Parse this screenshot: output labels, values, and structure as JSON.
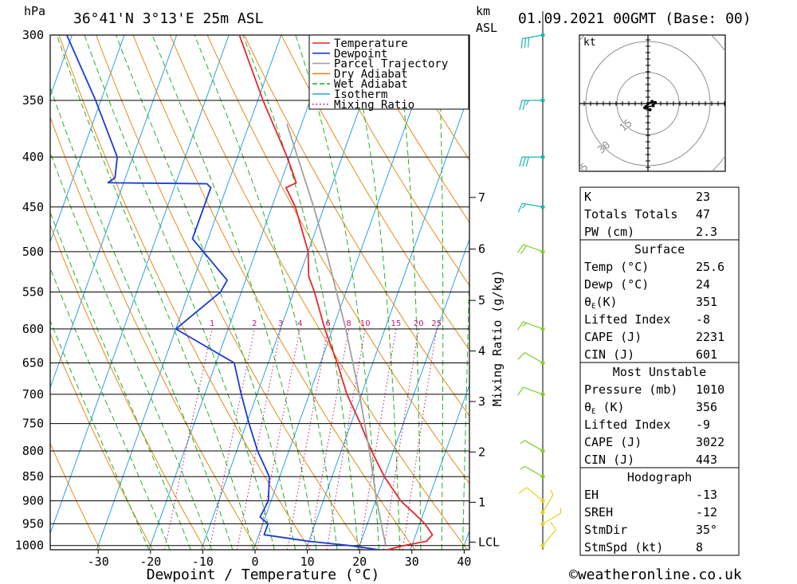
{
  "header": {
    "hpa_label": "hPa",
    "location": "36°41'N  3°13'E  25m  ASL",
    "km_label": "km",
    "asl_label": "ASL",
    "datetime": "01.09.2021  00GMT  (Base: 00)"
  },
  "footer": {
    "copyright": "©weatheronline.co.uk"
  },
  "chart_data": {
    "type": "line",
    "subtype": "skew-T log-P diagram",
    "xlabel": "Dewpoint / Temperature (°C)",
    "ylabel": "hPa",
    "secondary_axis_label": "Mixing Ratio (g/kg)",
    "xlim": [
      -40,
      40
    ],
    "ylim": [
      1010,
      300
    ],
    "pressure_ticks": [
      300,
      350,
      400,
      450,
      500,
      550,
      600,
      650,
      700,
      750,
      800,
      850,
      900,
      950,
      1000
    ],
    "temperature_ticks": [
      -30,
      -20,
      -10,
      0,
      10,
      20,
      30,
      40
    ],
    "km_ticks": [
      {
        "label": "7",
        "p": 440
      },
      {
        "label": "6",
        "p": 497
      },
      {
        "label": "5",
        "p": 561
      },
      {
        "label": "4",
        "p": 632
      },
      {
        "label": "3",
        "p": 712
      },
      {
        "label": "2",
        "p": 802
      },
      {
        "label": "1",
        "p": 903
      },
      {
        "label": "LCL",
        "p": 992
      }
    ],
    "mixing_ratio_labels": [
      "1",
      "2",
      "3",
      "4",
      "6",
      "8",
      "10",
      "15",
      "20",
      "25"
    ],
    "mixing_ratio_values": [
      1,
      2,
      3,
      4,
      6,
      8,
      10,
      15,
      20,
      25
    ],
    "legend": {
      "placement": "top-right",
      "entries": [
        {
          "label": "Temperature",
          "color": "#e8262e"
        },
        {
          "label": "Dewpoint",
          "color": "#1a3bd4"
        },
        {
          "label": "Parcel Trajectory",
          "color": "#a0a0a0"
        },
        {
          "label": "Dry Adiabat",
          "color": "#e88a1a"
        },
        {
          "label": "Wet Adiabat",
          "color": "#22b322"
        },
        {
          "label": "Isotherm",
          "color": "#2d9fe0"
        },
        {
          "label": "Mixing Ratio",
          "color": "#c0147a"
        }
      ]
    },
    "series": [
      {
        "name": "Temperature",
        "points": [
          {
            "p": 1010,
            "t": 25.6
          },
          {
            "p": 1000,
            "t": 28.5
          },
          {
            "p": 990,
            "t": 32.5
          },
          {
            "p": 975,
            "t": 33.2
          },
          {
            "p": 950,
            "t": 31.0
          },
          {
            "p": 925,
            "t": 28.0
          },
          {
            "p": 900,
            "t": 24.8
          },
          {
            "p": 850,
            "t": 20.0
          },
          {
            "p": 800,
            "t": 15.8
          },
          {
            "p": 750,
            "t": 11.8
          },
          {
            "p": 700,
            "t": 7.2
          },
          {
            "p": 650,
            "t": 3.2
          },
          {
            "p": 600,
            "t": -1.5
          },
          {
            "p": 550,
            "t": -6.0
          },
          {
            "p": 530,
            "t": -8.2
          },
          {
            "p": 500,
            "t": -10.0
          },
          {
            "p": 450,
            "t": -15.5
          },
          {
            "p": 430,
            "t": -18.6
          },
          {
            "p": 425,
            "t": -17.0
          },
          {
            "p": 400,
            "t": -20.5
          },
          {
            "p": 350,
            "t": -29.0
          },
          {
            "p": 300,
            "t": -38.0
          }
        ]
      },
      {
        "name": "Dewpoint",
        "points": [
          {
            "p": 1010,
            "t": 24.0
          },
          {
            "p": 1000,
            "t": 18.0
          },
          {
            "p": 990,
            "t": 10.0
          },
          {
            "p": 975,
            "t": 1.0
          },
          {
            "p": 950,
            "t": 1.0
          },
          {
            "p": 935,
            "t": -1.0
          },
          {
            "p": 900,
            "t": -0.5
          },
          {
            "p": 850,
            "t": -2.0
          },
          {
            "p": 800,
            "t": -6.0
          },
          {
            "p": 750,
            "t": -9.5
          },
          {
            "p": 700,
            "t": -13.0
          },
          {
            "p": 650,
            "t": -16.5
          },
          {
            "p": 600,
            "t": -30.0
          },
          {
            "p": 550,
            "t": -24.0
          },
          {
            "p": 535,
            "t": -23.5
          },
          {
            "p": 485,
            "t": -33.0
          },
          {
            "p": 430,
            "t": -33.0
          },
          {
            "p": 426,
            "t": -34.0
          },
          {
            "p": 425,
            "t": -53.0
          },
          {
            "p": 420,
            "t": -52.0
          },
          {
            "p": 400,
            "t": -53.0
          },
          {
            "p": 350,
            "t": -61.0
          },
          {
            "p": 300,
            "t": -71.0
          }
        ]
      },
      {
        "name": "Parcel Trajectory",
        "points": [
          {
            "p": 1000,
            "t": 25.0
          },
          {
            "p": 900,
            "t": 20.2
          },
          {
            "p": 800,
            "t": 15.4
          },
          {
            "p": 700,
            "t": 9.6
          },
          {
            "p": 600,
            "t": 2.5
          },
          {
            "p": 500,
            "t": -6.5
          },
          {
            "p": 450,
            "t": -12.0
          },
          {
            "p": 400,
            "t": -18.5
          },
          {
            "p": 370,
            "t": -22.8
          }
        ]
      }
    ],
    "wind_barbs": [
      {
        "p": 1000,
        "dir": 40,
        "spd": 10
      },
      {
        "p": 950,
        "dir": 60,
        "spd": 5
      },
      {
        "p": 925,
        "dir": 30,
        "spd": 5
      },
      {
        "p": 900,
        "dir": 310,
        "spd": 10
      },
      {
        "p": 850,
        "dir": 300,
        "spd": 5
      },
      {
        "p": 800,
        "dir": 300,
        "spd": 5
      },
      {
        "p": 700,
        "dir": 290,
        "spd": 10
      },
      {
        "p": 650,
        "dir": 300,
        "spd": 10
      },
      {
        "p": 600,
        "dir": 290,
        "spd": 15
      },
      {
        "p": 500,
        "dir": 290,
        "spd": 20
      },
      {
        "p": 450,
        "dir": 280,
        "spd": 15
      },
      {
        "p": 400,
        "dir": 270,
        "spd": 30
      },
      {
        "p": 350,
        "dir": 270,
        "spd": 25
      },
      {
        "p": 300,
        "dir": 260,
        "spd": 30
      }
    ],
    "hodograph": {
      "unit_label": "kt",
      "ring_labels": [
        "15",
        "30",
        "45"
      ],
      "rings": [
        15,
        30,
        45
      ],
      "points": [
        {
          "u": 1.0,
          "v": -3.0
        },
        {
          "u": -1.5,
          "v": -2.0
        },
        {
          "u": 2.5,
          "v": -1.0
        },
        {
          "u": 3.5,
          "v": 0.5
        },
        {
          "u": 2.0,
          "v": 1.0
        },
        {
          "u": 0.0,
          "v": 0.0
        },
        {
          "u": -1.0,
          "v": -1.5
        }
      ]
    }
  },
  "stats_table": {
    "rows1": [
      {
        "label": "K",
        "value": "23"
      },
      {
        "label": "Totals Totals",
        "value": "47"
      },
      {
        "label": "PW (cm)",
        "value": "2.3"
      }
    ],
    "surface_header": "Surface",
    "surface": [
      {
        "label": "Temp (°C)",
        "value": "25.6"
      },
      {
        "label": "Dewp (°C)",
        "value": "24"
      },
      {
        "label": "θE(K)",
        "value": "351"
      },
      {
        "label": "Lifted Index",
        "value": "-8"
      },
      {
        "label": "CAPE (J)",
        "value": "2231"
      },
      {
        "label": "CIN (J)",
        "value": "601"
      }
    ],
    "mu_header": "Most Unstable",
    "mu": [
      {
        "label": "Pressure (mb)",
        "value": "1010"
      },
      {
        "label": "θE (K)",
        "value": "356"
      },
      {
        "label": "Lifted Index",
        "value": "-9"
      },
      {
        "label": "CAPE (J)",
        "value": "3022"
      },
      {
        "label": "CIN (J)",
        "value": "443"
      }
    ],
    "hodo_header": "Hodograph",
    "hodo": [
      {
        "label": "EH",
        "value": "-13"
      },
      {
        "label": "SREH",
        "value": "-12"
      },
      {
        "label": "StmDir",
        "value": "35°"
      },
      {
        "label": "StmSpd (kt)",
        "value": "8"
      }
    ]
  },
  "colors": {
    "temperature": "#e8262e",
    "dewpoint": "#1a3bd4",
    "parcel": "#a0a0a0",
    "dry_adiabat": "#e88a1a",
    "wet_adiabat": "#22b322",
    "isotherm": "#2d9fe0",
    "mixing_ratio": "#c0147a",
    "wind_low": "#e6d21a",
    "wind_mid": "#7ccf2a",
    "wind_high": "#19b5b0"
  }
}
